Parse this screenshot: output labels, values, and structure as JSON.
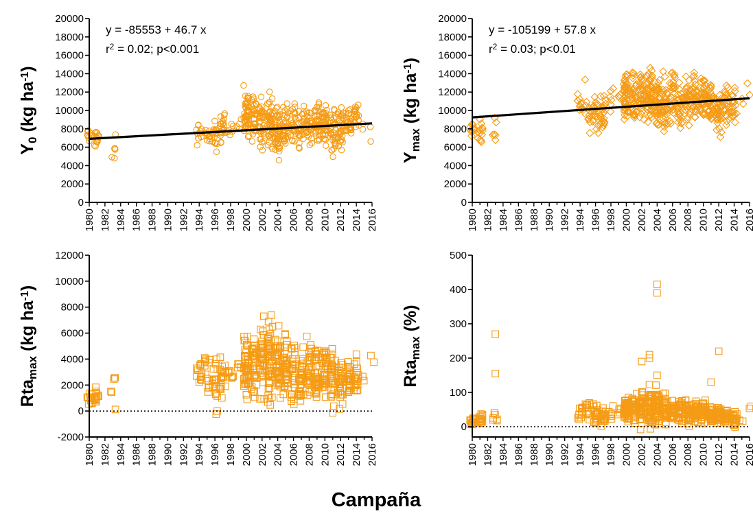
{
  "x_title": "Campaña",
  "colors": {
    "marker": "#F59B14",
    "axis": "#000000",
    "fit": "#000000"
  },
  "chart_data": [
    {
      "type": "scatter",
      "marker": "circle",
      "ylabel_main": "Y",
      "ylabel_sub": "0",
      "ylabel_unit": " (kg ha",
      "ylabel_sup": "-1",
      "ylabel_end": ")",
      "xlim": [
        1980,
        2016
      ],
      "ylim": [
        0,
        20000
      ],
      "yticks": [
        "0",
        "2000",
        "4000",
        "6000",
        "8000",
        "10000",
        "12000",
        "14000",
        "16000",
        "18000",
        "20000"
      ],
      "xticks": [
        "1980",
        "1982",
        "1984",
        "1986",
        "1988",
        "1990",
        "1992",
        "1994",
        "1996",
        "1998",
        "2000",
        "2002",
        "2004",
        "2006",
        "2008",
        "2010",
        "2012",
        "2014",
        "2016"
      ],
      "equation": "y = -85553 + 46.7 x",
      "stats_r": "r",
      "stats_sup": "2",
      "stats_rest": " = 0.02; p<0.001",
      "fit": {
        "intercept": -85553,
        "slope": 46.7
      },
      "baseline": null,
      "series": [
        {
          "years": [
            1980,
            1981,
            1983,
            1994,
            1995,
            1996,
            1997,
            1998,
            1999,
            2000,
            2001,
            2002,
            2003,
            2004,
            2005,
            2006,
            2007,
            2008,
            2009,
            2010,
            2011,
            2012,
            2013,
            2014,
            2015,
            2016
          ],
          "center": [
            7200,
            6800,
            6000,
            7600,
            7400,
            7200,
            8000,
            8300,
            8600,
            9500,
            9200,
            8800,
            8700,
            7800,
            8000,
            8400,
            8200,
            8300,
            8700,
            8600,
            7800,
            7800,
            8500,
            8800,
            9000,
            7800
          ],
          "spread": [
            1200,
            2000,
            2500,
            1800,
            1700,
            2500,
            2500,
            1600,
            1200,
            3500,
            3500,
            3500,
            3800,
            3800,
            3500,
            3500,
            3300,
            3000,
            3200,
            3500,
            3500,
            3500,
            3000,
            2500,
            2500,
            3000
          ],
          "count": [
            10,
            14,
            6,
            12,
            12,
            18,
            22,
            6,
            4,
            50,
            32,
            36,
            48,
            44,
            36,
            28,
            30,
            30,
            34,
            38,
            34,
            32,
            26,
            20,
            2,
            2
          ]
        }
      ]
    },
    {
      "type": "scatter",
      "marker": "diamond",
      "ylabel_main": "Y",
      "ylabel_sub": "max",
      "ylabel_unit": " (kg ha",
      "ylabel_sup": "-1",
      "ylabel_end": ")",
      "xlim": [
        1980,
        2016
      ],
      "ylim": [
        0,
        20000
      ],
      "yticks": [
        "0",
        "2000",
        "4000",
        "6000",
        "8000",
        "10000",
        "12000",
        "14000",
        "16000",
        "18000",
        "20000"
      ],
      "xticks": [
        "1980",
        "1982",
        "1984",
        "1986",
        "1988",
        "1990",
        "1992",
        "1994",
        "1996",
        "1998",
        "2000",
        "2002",
        "2004",
        "2006",
        "2008",
        "2010",
        "2012",
        "2014",
        "2016"
      ],
      "equation": "y = -105199 + 57.8 x",
      "stats_r": "r",
      "stats_sup": "2",
      "stats_rest": " = 0.03; p<0.01",
      "fit": {
        "intercept": -105199,
        "slope": 57.8
      },
      "baseline": null,
      "series": [
        {
          "years": [
            1980,
            1981,
            1983,
            1994,
            1995,
            1996,
            1997,
            1998,
            1999,
            2000,
            2001,
            2002,
            2003,
            2004,
            2005,
            2006,
            2007,
            2008,
            2009,
            2010,
            2011,
            2012,
            2013,
            2014,
            2015,
            2016
          ],
          "center": [
            7800,
            7500,
            7500,
            10500,
            10000,
            9000,
            10000,
            11000,
            11500,
            11500,
            11500,
            11500,
            11800,
            11000,
            11000,
            11500,
            10500,
            10800,
            11800,
            11500,
            10500,
            9800,
            10500,
            10500,
            11000,
            11500
          ],
          "spread": [
            1200,
            2000,
            2500,
            1800,
            4000,
            3500,
            3500,
            2000,
            1500,
            3800,
            3800,
            4000,
            4200,
            4200,
            4000,
            4000,
            3800,
            3500,
            3800,
            4000,
            3800,
            3800,
            3500,
            3000,
            2500,
            3500
          ],
          "count": [
            10,
            14,
            6,
            12,
            12,
            18,
            22,
            6,
            4,
            50,
            32,
            36,
            48,
            44,
            36,
            28,
            30,
            30,
            34,
            38,
            34,
            32,
            26,
            20,
            2,
            2
          ]
        }
      ]
    },
    {
      "type": "scatter",
      "marker": "square",
      "ylabel_main": "Rta",
      "ylabel_sub": "max",
      "ylabel_unit": " (kg ha",
      "ylabel_sup": "-1",
      "ylabel_end": ")",
      "xlim": [
        1980,
        2016
      ],
      "ylim": [
        -2000,
        12000
      ],
      "yticks": [
        "-2000",
        "0",
        "2000",
        "4000",
        "6000",
        "8000",
        "10000",
        "12000"
      ],
      "xticks": [
        "1980",
        "1982",
        "1984",
        "1986",
        "1988",
        "1990",
        "1992",
        "1994",
        "1996",
        "1998",
        "2000",
        "2002",
        "2004",
        "2006",
        "2008",
        "2010",
        "2012",
        "2014",
        "2016"
      ],
      "equation": "",
      "stats_r": "",
      "stats_sup": "",
      "stats_rest": "",
      "fit": null,
      "baseline": 0,
      "series": [
        {
          "years": [
            1980,
            1981,
            1983,
            1994,
            1995,
            1996,
            1997,
            1998,
            1999,
            2000,
            2001,
            2002,
            2003,
            2004,
            2005,
            2006,
            2007,
            2008,
            2009,
            2010,
            2011,
            2012,
            2013,
            2014,
            2015,
            2016
          ],
          "center": [
            1000,
            1200,
            1800,
            3000,
            3200,
            2000,
            2500,
            2800,
            3500,
            3600,
            3500,
            3800,
            4000,
            3500,
            3300,
            3000,
            3000,
            3200,
            3000,
            3200,
            2600,
            2200,
            2500,
            2200,
            2000,
            4000
          ],
          "spread": [
            900,
            1200,
            2000,
            1800,
            3500,
            2500,
            2500,
            800,
            500,
            3500,
            3500,
            3800,
            4500,
            4500,
            3500,
            3800,
            3500,
            3000,
            3200,
            3000,
            3000,
            2500,
            2500,
            2300,
            1500,
            700
          ],
          "count": [
            10,
            14,
            6,
            12,
            12,
            18,
            22,
            6,
            4,
            50,
            32,
            36,
            48,
            44,
            36,
            28,
            30,
            30,
            34,
            38,
            34,
            32,
            26,
            20,
            2,
            2
          ]
        }
      ]
    },
    {
      "type": "scatter",
      "marker": "square",
      "ylabel_main": "Rta",
      "ylabel_sub": "max",
      "ylabel_unit": " (%)",
      "ylabel_sup": "",
      "ylabel_end": "",
      "xlim": [
        1980,
        2016
      ],
      "ylim": [
        -30,
        500
      ],
      "yticks": [
        "0",
        "100",
        "200",
        "300",
        "400",
        "500"
      ],
      "yticks_values": [
        0,
        100,
        200,
        300,
        400,
        500
      ],
      "xticks": [
        "1980",
        "1982",
        "1984",
        "1986",
        "1988",
        "1990",
        "1992",
        "1994",
        "1996",
        "1998",
        "2000",
        "2002",
        "2004",
        "2006",
        "2008",
        "2010",
        "2012",
        "2014",
        "2016"
      ],
      "equation": "",
      "stats_r": "",
      "stats_sup": "",
      "stats_rest": "",
      "fit": null,
      "baseline": 0,
      "series": [
        {
          "years": [
            1980,
            1981,
            1983,
            1994,
            1995,
            1996,
            1997,
            1998,
            1999,
            2000,
            2001,
            2002,
            2003,
            2004,
            2005,
            2006,
            2007,
            2008,
            2009,
            2010,
            2011,
            2012,
            2013,
            2014,
            2015,
            2016
          ],
          "center": [
            15,
            20,
            25,
            40,
            40,
            35,
            35,
            40,
            45,
            50,
            50,
            55,
            60,
            55,
            50,
            45,
            45,
            45,
            40,
            40,
            35,
            35,
            30,
            25,
            20,
            55
          ],
          "spread": [
            25,
            35,
            40,
            35,
            45,
            45,
            45,
            25,
            20,
            60,
            60,
            70,
            80,
            80,
            60,
            60,
            55,
            50,
            50,
            45,
            45,
            40,
            35,
            35,
            15,
            12
          ],
          "count": [
            10,
            14,
            6,
            12,
            12,
            18,
            22,
            6,
            4,
            50,
            32,
            36,
            48,
            44,
            36,
            28,
            30,
            30,
            34,
            38,
            34,
            32,
            26,
            20,
            2,
            2
          ],
          "outliers": [
            [
              1983,
              270
            ],
            [
              1983,
              155
            ],
            [
              2002,
              190
            ],
            [
              2003,
              200
            ],
            [
              2003,
              210
            ],
            [
              2004,
              415
            ],
            [
              2004,
              390
            ],
            [
              2004,
              150
            ],
            [
              2012,
              220
            ],
            [
              2011,
              130
            ]
          ]
        }
      ]
    }
  ]
}
